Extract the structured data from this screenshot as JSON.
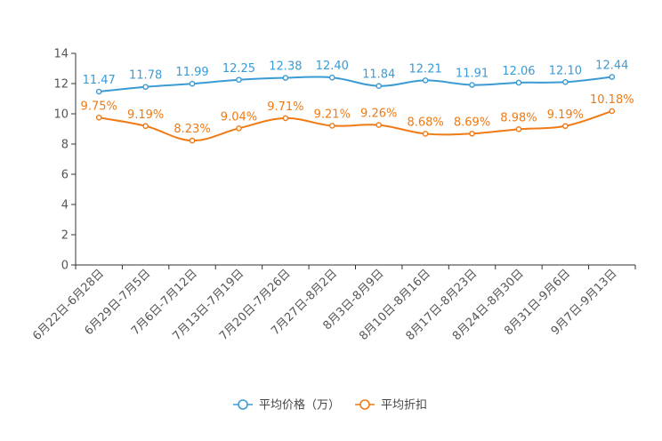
{
  "chart_data": {
    "type": "line",
    "title": "",
    "xlabel": "",
    "ylabel": "",
    "ylim": [
      0,
      14
    ],
    "yticks": [
      0,
      2,
      4,
      6,
      8,
      10,
      12,
      14
    ],
    "categories": [
      "6月22日-6月28日",
      "6月29日-7月5日",
      "7月6日-7月12日",
      "7月13日-7月19日",
      "7月20日-7月26日",
      "7月27日-8月2日",
      "8月3日-8月9日",
      "8月10日-8月16日",
      "8月17日-8月23日",
      "8月24日-8月30日",
      "8月31日-9月6日",
      "9月7日-9月13日"
    ],
    "series": [
      {
        "name": "平均价格（万）",
        "color": "#3a9bd5",
        "values": [
          11.47,
          11.78,
          11.99,
          12.25,
          12.38,
          12.4,
          11.84,
          12.21,
          11.91,
          12.06,
          12.1,
          12.44
        ],
        "labels": [
          "11.47",
          "11.78",
          "11.99",
          "12.25",
          "12.38",
          "12.40",
          "11.84",
          "12.21",
          "11.91",
          "12.06",
          "12.10",
          "12.44"
        ]
      },
      {
        "name": "平均折扣",
        "color": "#f07a13",
        "values": [
          9.75,
          9.19,
          8.23,
          9.04,
          9.71,
          9.21,
          9.26,
          8.68,
          8.69,
          8.98,
          9.19,
          10.18
        ],
        "labels": [
          "9.75%",
          "9.19%",
          "8.23%",
          "9.04%",
          "9.71%",
          "9.21%",
          "9.26%",
          "8.68%",
          "8.69%",
          "8.98%",
          "9.19%",
          "10.18%"
        ]
      }
    ],
    "legend_position": "bottom-center",
    "grid": false
  }
}
